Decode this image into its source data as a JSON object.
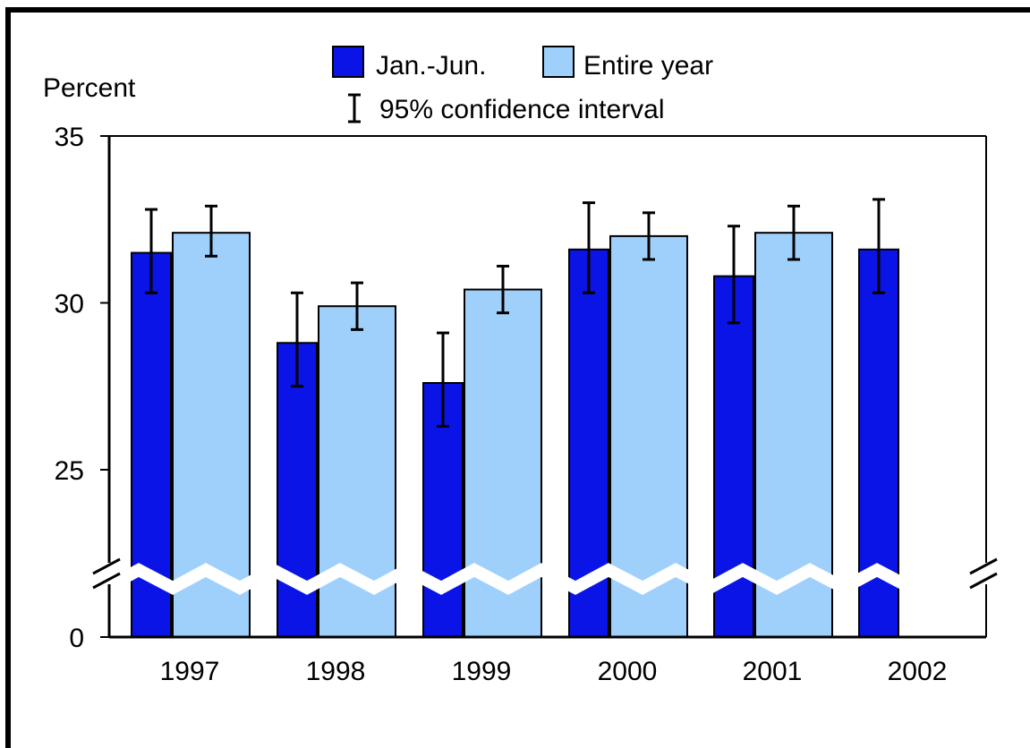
{
  "colors": {
    "jan_jun": "#0a14e6",
    "entire_year": "#9fd0fb",
    "axis": "#000000"
  },
  "chart_data": {
    "type": "bar",
    "ylabel": "Percent",
    "y_ticks": [
      "35",
      "30",
      "25",
      "0"
    ],
    "y_tick_values": [
      35,
      30,
      25,
      0
    ],
    "ylim": [
      0,
      35
    ],
    "axis_break": true,
    "break_between": [
      0,
      25
    ],
    "categories": [
      "1997",
      "1998",
      "1999",
      "2000",
      "2001",
      "2002"
    ],
    "series": [
      {
        "name": "Jan.-Jun.",
        "values": [
          31.5,
          28.8,
          27.6,
          31.6,
          30.8,
          31.6
        ],
        "ci_low": [
          30.3,
          27.5,
          26.3,
          30.3,
          29.4,
          30.3
        ],
        "ci_high": [
          32.8,
          30.3,
          29.1,
          33.0,
          32.3,
          33.1
        ]
      },
      {
        "name": "Entire year",
        "values": [
          32.1,
          29.9,
          30.4,
          32.0,
          32.1,
          null
        ],
        "ci_low": [
          31.4,
          29.2,
          29.7,
          31.3,
          31.3,
          null
        ],
        "ci_high": [
          32.9,
          30.6,
          31.1,
          32.7,
          32.9,
          null
        ]
      }
    ],
    "legend": {
      "jan_jun": "Jan.-Jun.",
      "entire_year": "Entire year",
      "ci": "95% confidence interval"
    },
    "grid": false
  }
}
